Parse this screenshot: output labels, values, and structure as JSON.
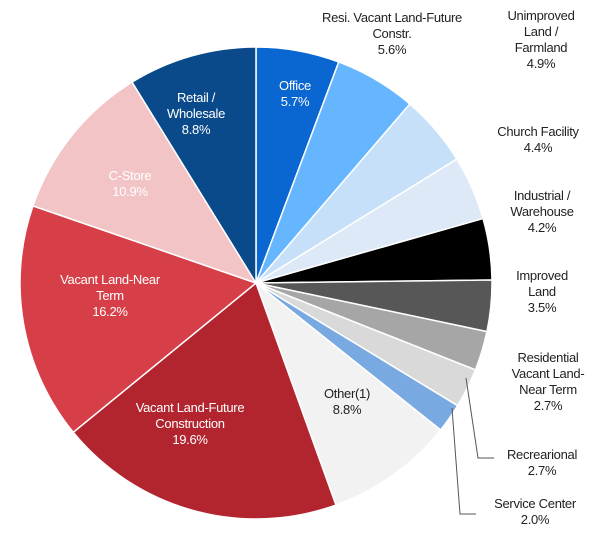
{
  "chart_data": {
    "type": "pie",
    "categories": [
      "Office",
      "Resi. Vacant Land-Future Constr.",
      "Unimproved Land / Farmland",
      "Church Facility",
      "Industrial / Warehouse",
      "Improved Land",
      "Residential Vacant Land-Near Term",
      "Recrearional",
      "Service Center",
      "Other(1)",
      "Vacant Land-Future Construction",
      "Vacant Land-Near Term",
      "C-Store",
      "Retail / Wholesale"
    ],
    "values": [
      5.7,
      5.6,
      4.9,
      4.4,
      4.2,
      3.5,
      2.7,
      2.7,
      2.0,
      8.8,
      19.6,
      16.2,
      10.9,
      8.8
    ],
    "value_labels": [
      "5.7%",
      "5.6%",
      "4.9%",
      "4.4%",
      "4.2%",
      "3.5%",
      "2.7%",
      "2.7%",
      "2.0%",
      "8.8%",
      "19.6%",
      "16.2%",
      "10.9%",
      "8.8%"
    ],
    "colors": [
      "#0a66d0",
      "#66b5ff",
      "#c6e0fa",
      "#dde9f6",
      "#000000",
      "#575757",
      "#a6a6a6",
      "#d9d9d9",
      "#78a9e0",
      "#f2f2f2",
      "#b2252e",
      "#d63e48",
      "#f2c4c6",
      "#0b4a8a"
    ]
  }
}
